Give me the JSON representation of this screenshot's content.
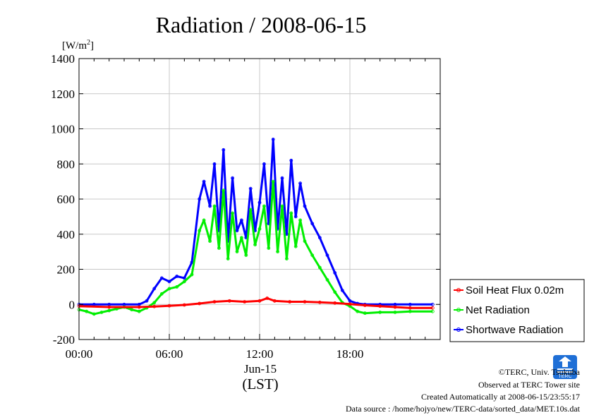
{
  "chart_data": {
    "type": "line",
    "title": "Radiation / 2008-06-15",
    "ylabel_unit": "[W/m",
    "ylabel_unit_sup": "2",
    "ylabel_unit_close": "]",
    "ylim": [
      -200,
      1400
    ],
    "yticks": [
      -200,
      0,
      200,
      400,
      600,
      800,
      1000,
      1200,
      1400
    ],
    "xlim": [
      0,
      24
    ],
    "xticks": [
      0,
      6,
      12,
      18
    ],
    "xtick_labels": [
      "00:00",
      "06:00",
      "12:00",
      "18:00"
    ],
    "date_label": "Jun-15",
    "xlabel": "(LST)",
    "grid": true,
    "legend_position": "right",
    "series": [
      {
        "name": "Soil Heat Flux 0.02m",
        "color": "#ff0000",
        "x": [
          0,
          2,
          4,
          5,
          6,
          7,
          8,
          9,
          10,
          11,
          12,
          12.5,
          13,
          14,
          15,
          16,
          17,
          18,
          19,
          20,
          21,
          22,
          23.5
        ],
        "y": [
          -10,
          -15,
          -15,
          -12,
          -8,
          -3,
          5,
          15,
          20,
          15,
          20,
          35,
          20,
          15,
          15,
          12,
          8,
          2,
          -5,
          -10,
          -15,
          -20,
          -20
        ]
      },
      {
        "name": "Net Radiation",
        "color": "#00ee00",
        "x": [
          0,
          0.5,
          1,
          1.5,
          2,
          2.5,
          3,
          3.5,
          4,
          4.5,
          5,
          5.5,
          6,
          6.5,
          7,
          7.5,
          8,
          8.3,
          8.7,
          9,
          9.3,
          9.6,
          9.9,
          10.2,
          10.5,
          10.8,
          11.1,
          11.4,
          11.7,
          12,
          12.3,
          12.6,
          12.9,
          13.2,
          13.5,
          13.8,
          14.1,
          14.4,
          14.7,
          15,
          15.5,
          16,
          16.5,
          17,
          17.5,
          18,
          18.5,
          19,
          20,
          21,
          22,
          23.5
        ],
        "y": [
          -30,
          -40,
          -55,
          -45,
          -35,
          -25,
          -15,
          -30,
          -40,
          -20,
          10,
          60,
          90,
          100,
          130,
          170,
          420,
          480,
          360,
          560,
          320,
          650,
          260,
          520,
          300,
          380,
          280,
          540,
          340,
          430,
          560,
          320,
          700,
          300,
          560,
          260,
          520,
          330,
          480,
          360,
          280,
          210,
          140,
          70,
          10,
          -10,
          -40,
          -50,
          -45,
          -45,
          -40,
          -40
        ]
      },
      {
        "name": "Shortwave Radiation",
        "color": "#0000ff",
        "x": [
          0,
          1,
          2,
          3,
          4,
          4.5,
          5,
          5.5,
          6,
          6.5,
          7,
          7.5,
          8,
          8.3,
          8.7,
          9,
          9.3,
          9.6,
          9.9,
          10.2,
          10.5,
          10.8,
          11.1,
          11.4,
          11.7,
          12,
          12.3,
          12.6,
          12.9,
          13.2,
          13.5,
          13.8,
          14.1,
          14.4,
          14.7,
          15,
          15.5,
          16,
          16.5,
          17,
          17.5,
          18,
          18.5,
          19,
          20,
          21,
          22,
          23.5
        ],
        "y": [
          0,
          0,
          0,
          0,
          0,
          20,
          90,
          150,
          130,
          160,
          150,
          240,
          600,
          700,
          560,
          800,
          420,
          880,
          360,
          720,
          420,
          480,
          380,
          660,
          420,
          580,
          800,
          460,
          940,
          430,
          720,
          400,
          820,
          500,
          690,
          560,
          460,
          380,
          280,
          180,
          80,
          20,
          5,
          0,
          0,
          0,
          0,
          0
        ]
      }
    ]
  },
  "logo_text": "TERC",
  "credits": [
    "©TERC, Univ. Tsukuba",
    "Observed at TERC Tower site",
    "Created Automatically at 2008-06-15/23:55:17",
    "Data source : /home/hojyo/new/TERC-data/sorted_data/MET.10s.dat"
  ]
}
